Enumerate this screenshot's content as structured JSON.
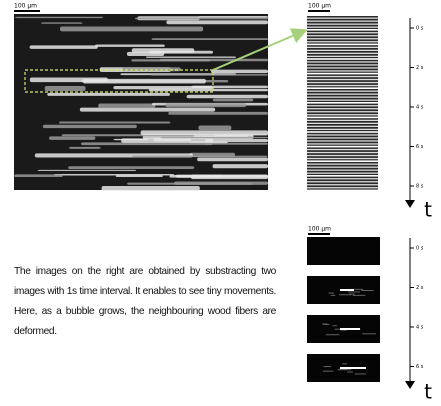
{
  "left_image": {
    "scale_label": "100 µm"
  },
  "strips_top": {
    "scale_label": "100 µm",
    "time_labels": [
      "0 s",
      "2 s",
      "4 s",
      "6 s",
      "8 s"
    ],
    "axis_label": "t"
  },
  "strips_bottom": {
    "scale_label": "100 µm",
    "time_labels": [
      "0 s",
      "2 s",
      "4 s",
      "6 s"
    ],
    "axis_label": "t"
  },
  "caption": "The images on the right are obtained by substracting two images with 1s time interval. It enables to see tiny movements. Here, as a bubble grows, the neighbouring wood fibers are deformed."
}
